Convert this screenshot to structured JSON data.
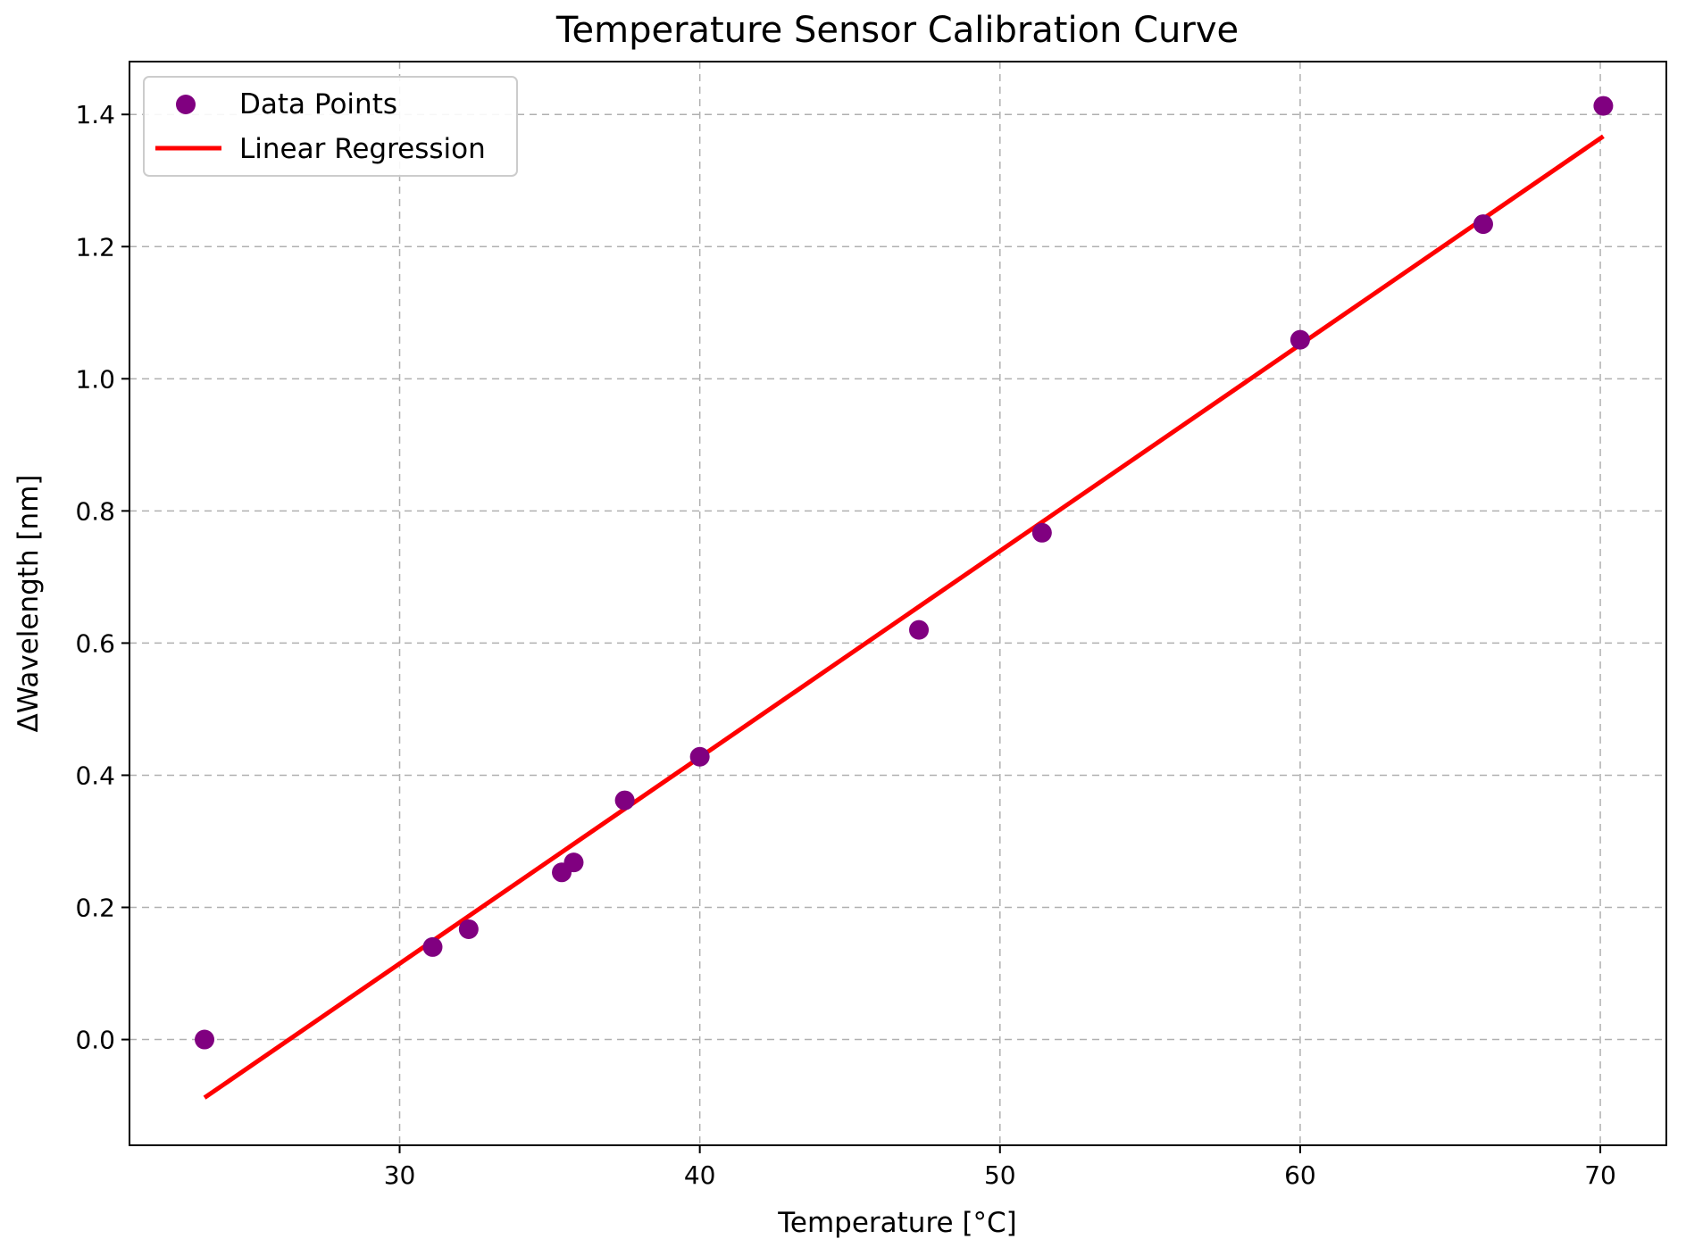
{
  "chart_data": {
    "type": "scatter",
    "title": "Temperature Sensor Calibration Curve",
    "xlabel": "Temperature [°C]",
    "ylabel": "ΔWavelength [nm]",
    "xlim": [
      21.0,
      72.2
    ],
    "ylim": [
      -0.16,
      1.48
    ],
    "x_ticks": [
      30,
      40,
      50,
      60,
      70
    ],
    "x_tick_labels": [
      "30",
      "40",
      "50",
      "60",
      "70"
    ],
    "y_ticks": [
      0.0,
      0.2,
      0.4,
      0.6,
      0.8,
      1.0,
      1.2,
      1.4
    ],
    "y_tick_labels": [
      "0.0",
      "0.2",
      "0.4",
      "0.6",
      "0.8",
      "1.0",
      "1.2",
      "1.4"
    ],
    "grid": true,
    "legend_placement": "top-left",
    "series": [
      {
        "name": "Data Points",
        "kind": "scatter",
        "color": "#800080",
        "x": [
          23.5,
          31.1,
          32.3,
          35.4,
          35.8,
          37.5,
          40.0,
          47.3,
          51.4,
          60.0,
          66.1,
          70.1
        ],
        "y": [
          0.0,
          0.14,
          0.167,
          0.253,
          0.268,
          0.362,
          0.428,
          0.62,
          0.767,
          1.059,
          1.234,
          1.413
        ]
      },
      {
        "name": "Linear Regression",
        "kind": "line",
        "color": "#ff0000",
        "x": [
          23.5,
          70.1
        ],
        "y": [
          -0.088,
          1.367
        ]
      }
    ]
  },
  "colors": {
    "grid": "#b0b0b0",
    "axes": "#000000",
    "legend_border": "#cccccc"
  }
}
